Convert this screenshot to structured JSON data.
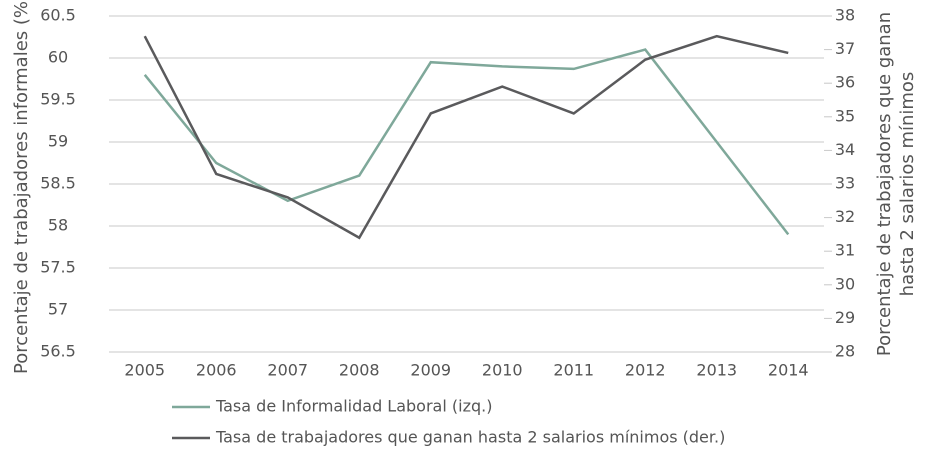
{
  "chart_data": {
    "type": "line",
    "ylabel": "Porcentaje de trabajadores informales (%)",
    "y2label": [
      "Porcentaje de trabajadores que ganan",
      "hasta 2 salarios mínimos"
    ],
    "categories": [
      "2005",
      "2006",
      "2007",
      "2008",
      "2009",
      "2010",
      "2011",
      "2012",
      "2013",
      "2014"
    ],
    "series": [
      {
        "name": "Tasa de Informalidad Laboral (izq.)",
        "color": "#7fa89a",
        "values": [
          59.8,
          58.75,
          58.3,
          58.6,
          59.95,
          59.9,
          59.87,
          60.1,
          59.0,
          57.9
        ]
      },
      {
        "name": "Tasa de trabajadores que ganan hasta 2 salarios mínimos (der.)",
        "color": "#5a5a5c",
        "axis": "y2",
        "values": [
          37.4,
          33.3,
          32.6,
          31.4,
          35.1,
          35.9,
          35.1,
          36.7,
          37.4,
          36.9
        ]
      }
    ],
    "ylim": [
      56.5,
      60.5
    ],
    "yticks": [
      56.5,
      57,
      57.5,
      58,
      58.5,
      59,
      59.5,
      60,
      60.5
    ],
    "y2lim": [
      28,
      38
    ],
    "y2ticks": [
      28,
      29,
      30,
      31,
      32,
      33,
      34,
      35,
      36,
      37,
      38
    ],
    "grid": true
  }
}
